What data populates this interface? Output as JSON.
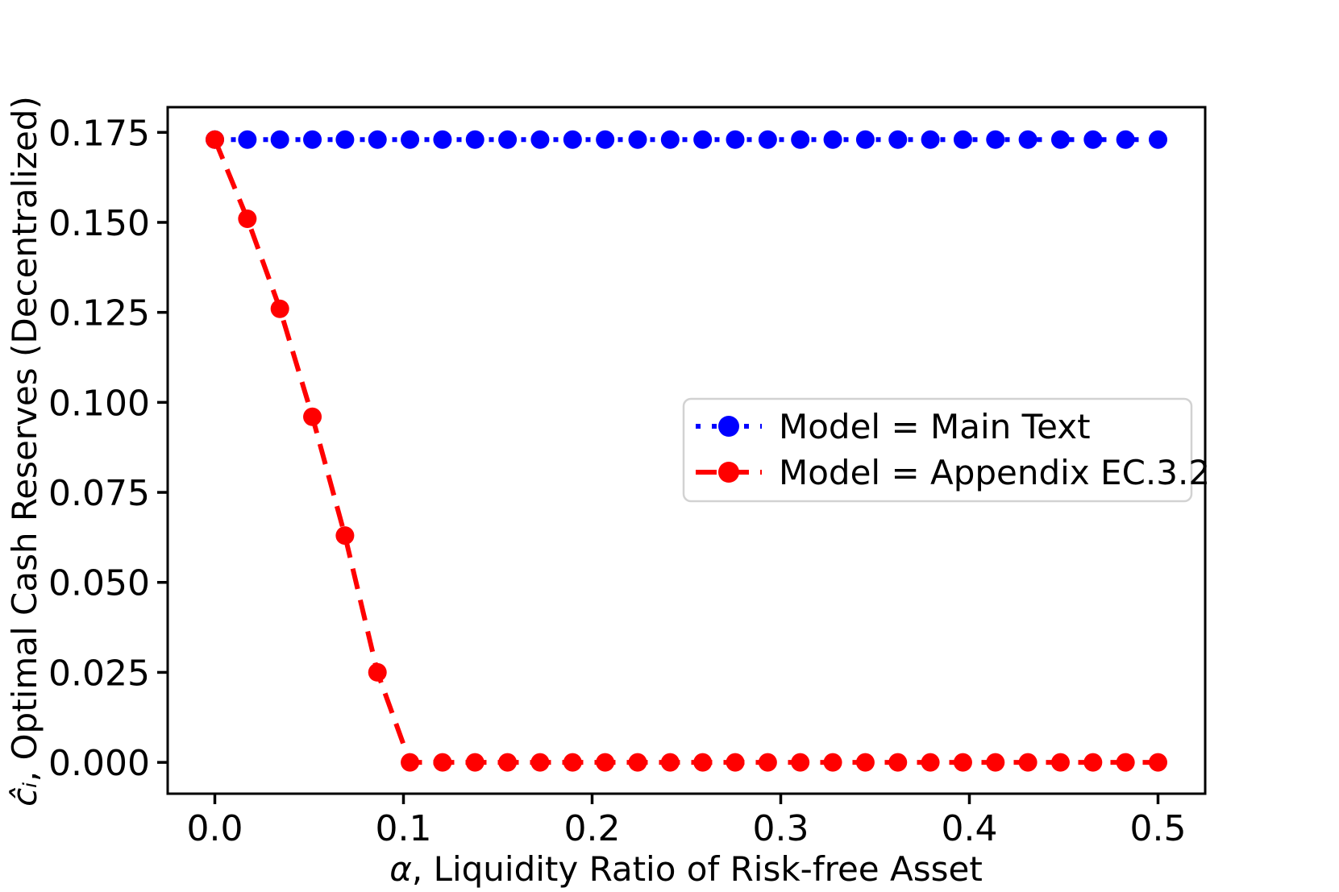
{
  "figure": {
    "background": "#ffffff",
    "frame_color": "#000000"
  },
  "chart_data": {
    "type": "line",
    "title": "",
    "xlabel": "α, Liquidity Ratio of Risk-free Asset",
    "xlabel_math": "α",
    "xlabel_rest": ", Liquidity Ratio of Risk-free Asset",
    "ylabel": "ĉᵢ, Optimal Cash Reserves (Decentralized)",
    "ylabel_math": "ĉᵢ",
    "ylabel_rest": ", Optimal Cash Reserves (Decentralized)",
    "xlim": [
      -0.025,
      0.525
    ],
    "ylim": [
      -0.0087,
      0.182
    ],
    "grid": false,
    "x_ticks": [
      0.0,
      0.1,
      0.2,
      0.3,
      0.4,
      0.5
    ],
    "x_tick_labels": [
      "0.0",
      "0.1",
      "0.2",
      "0.3",
      "0.4",
      "0.5"
    ],
    "y_ticks": [
      0.0,
      0.025,
      0.05,
      0.075,
      0.1,
      0.125,
      0.15,
      0.175
    ],
    "y_tick_labels": [
      "0.000",
      "0.025",
      "0.050",
      "0.075",
      "0.100",
      "0.125",
      "0.150",
      "0.175"
    ],
    "x": [
      0.0,
      0.01724,
      0.03448,
      0.05172,
      0.06897,
      0.08621,
      0.10345,
      0.12069,
      0.13793,
      0.15517,
      0.17241,
      0.18966,
      0.2069,
      0.22414,
      0.24138,
      0.25862,
      0.27586,
      0.2931,
      0.31034,
      0.32759,
      0.34483,
      0.36207,
      0.37931,
      0.39655,
      0.41379,
      0.43103,
      0.44828,
      0.46552,
      0.48276,
      0.5
    ],
    "series": [
      {
        "name": "Model = Main Text",
        "color": "#0000ff",
        "linestyle": "dotted",
        "marker": "circle",
        "values": [
          0.173,
          0.173,
          0.173,
          0.173,
          0.173,
          0.173,
          0.173,
          0.173,
          0.173,
          0.173,
          0.173,
          0.173,
          0.173,
          0.173,
          0.173,
          0.173,
          0.173,
          0.173,
          0.173,
          0.173,
          0.173,
          0.173,
          0.173,
          0.173,
          0.173,
          0.173,
          0.173,
          0.173,
          0.173,
          0.173
        ]
      },
      {
        "name": "Model = Appendix EC.3.2",
        "color": "#ff0000",
        "linestyle": "dashed",
        "marker": "circle",
        "values": [
          0.173,
          0.151,
          0.126,
          0.096,
          0.063,
          0.025,
          0.0,
          0.0,
          0.0,
          0.0,
          0.0,
          0.0,
          0.0,
          0.0,
          0.0,
          0.0,
          0.0,
          0.0,
          0.0,
          0.0,
          0.0,
          0.0,
          0.0,
          0.0,
          0.0,
          0.0,
          0.0,
          0.0,
          0.0,
          0.0
        ]
      }
    ],
    "legend": {
      "position": "inside-right",
      "entries": [
        "Model = Main Text",
        "Model = Appendix EC.3.2"
      ]
    }
  }
}
